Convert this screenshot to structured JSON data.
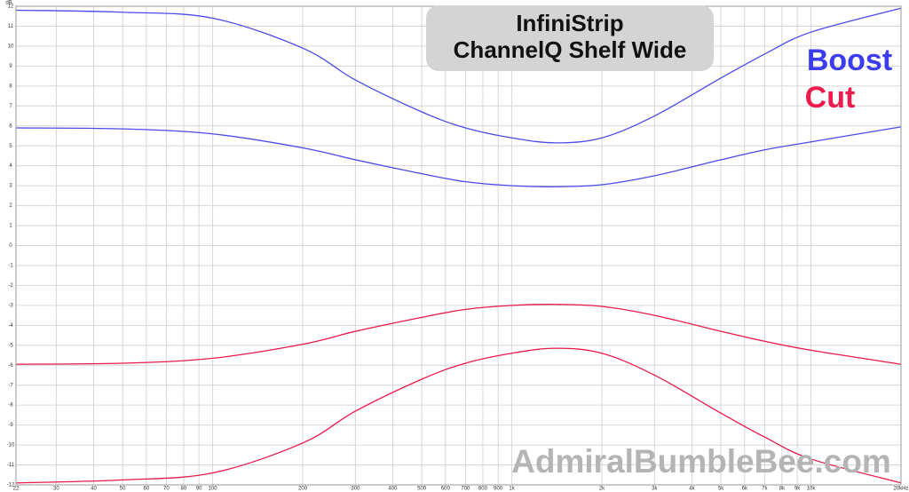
{
  "chart_data": {
    "type": "line",
    "title": "InfiniStrip",
    "subtitle": "ChannelQ Shelf Wide",
    "y_label": "dB",
    "annotation": "AdmiralBumbleBee.com",
    "log_x": true,
    "grid": true,
    "xlim": [
      22,
      20000
    ],
    "ylim": [
      -12,
      12
    ],
    "xticks": [
      22,
      30,
      40,
      50,
      60,
      70,
      80,
      90,
      100,
      200,
      300,
      400,
      500,
      600,
      700,
      800,
      900,
      {
        "value": 1000,
        "label": "1k"
      },
      {
        "value": 2000,
        "label": "2k"
      },
      {
        "value": 3000,
        "label": "3k"
      },
      {
        "value": 4000,
        "label": "4k"
      },
      {
        "value": 5000,
        "label": "5k"
      },
      {
        "value": 6000,
        "label": "6k"
      },
      {
        "value": 7000,
        "label": "7k"
      },
      {
        "value": 8000,
        "label": "8k"
      },
      {
        "value": 9000,
        "label": "9k"
      },
      {
        "value": 10000,
        "label": "10k"
      },
      {
        "value": 20000,
        "label": "20kHz"
      }
    ],
    "yticks": [
      -12,
      -11,
      -10,
      -9,
      -8,
      -7,
      -6,
      -5,
      -4,
      -3,
      -2,
      -1,
      0,
      1,
      2,
      3,
      4,
      5,
      6,
      7,
      8,
      9,
      10,
      11,
      12
    ],
    "legend": [
      {
        "name": "Boost",
        "color": "#3c3cf0"
      },
      {
        "name": "Cut",
        "color": "#ee1a4c"
      }
    ],
    "x": [
      22,
      50,
      100,
      200,
      300,
      500,
      700,
      1000,
      1400,
      2000,
      3000,
      5000,
      7000,
      10000,
      20000
    ],
    "series": [
      {
        "color": "#4a4ae8",
        "values": [
          11.8,
          11.7,
          11.4,
          9.9,
          8.3,
          6.7,
          5.9,
          5.4,
          5.15,
          5.4,
          6.5,
          8.4,
          9.6,
          10.7,
          11.9
        ]
      },
      {
        "color": "#4a4ae8",
        "values": [
          5.9,
          5.85,
          5.6,
          4.9,
          4.3,
          3.6,
          3.2,
          3.0,
          2.95,
          3.05,
          3.5,
          4.3,
          4.8,
          5.2,
          5.95
        ]
      },
      {
        "color": "#e8194a",
        "values": [
          -5.95,
          -5.9,
          -5.65,
          -4.95,
          -4.3,
          -3.6,
          -3.2,
          -3.0,
          -2.95,
          -3.05,
          -3.5,
          -4.3,
          -4.8,
          -5.25,
          -5.95
        ]
      },
      {
        "color": "#e8194a",
        "values": [
          -11.9,
          -11.75,
          -11.4,
          -9.9,
          -8.3,
          -6.7,
          -5.9,
          -5.4,
          -5.15,
          -5.4,
          -6.5,
          -8.4,
          -9.6,
          -10.7,
          -11.9
        ]
      }
    ]
  }
}
